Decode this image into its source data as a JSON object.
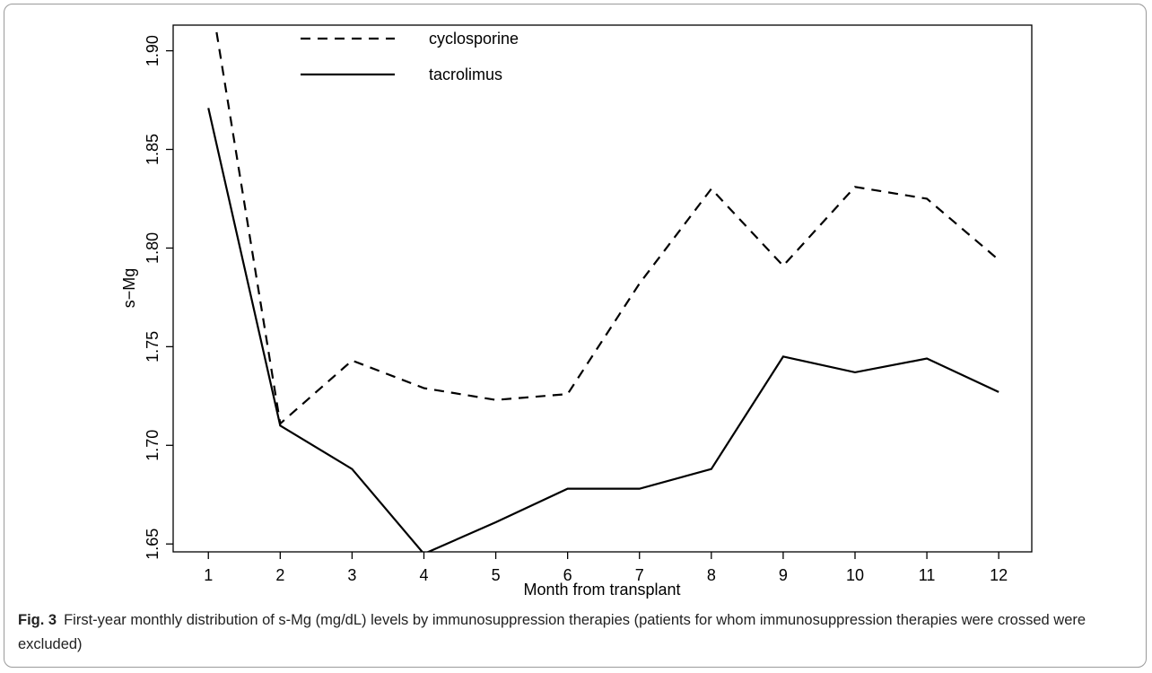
{
  "chart_data": {
    "type": "line",
    "x_label": "Month from transplant",
    "y_label": "s−Mg",
    "x": [
      1,
      2,
      3,
      4,
      5,
      6,
      7,
      8,
      9,
      10,
      11,
      12
    ],
    "series": [
      {
        "name": "cyclosporine",
        "color": "#000000",
        "linestyle": "dashed",
        "values": [
          1.935,
          1.711,
          1.743,
          1.729,
          1.723,
          1.726,
          1.782,
          1.83,
          1.791,
          1.831,
          1.825,
          1.794
        ]
      },
      {
        "name": "tacrolimus",
        "color": "#000000",
        "linestyle": "solid",
        "values": [
          1.871,
          1.71,
          1.688,
          1.645,
          1.661,
          1.678,
          1.678,
          1.688,
          1.745,
          1.737,
          1.744,
          1.727
        ]
      }
    ],
    "xlim": [
      0.51,
      12.46
    ],
    "xticks": [
      1,
      2,
      3,
      4,
      5,
      6,
      7,
      8,
      9,
      10,
      11,
      12
    ],
    "ylim": [
      1.646,
      1.913
    ],
    "yticks": [
      1.65,
      {
        "value": 1.7,
        "label": "1.70"
      },
      1.75,
      {
        "value": 1.8,
        "label": "1.80"
      },
      1.85,
      {
        "value": 1.9,
        "label": "1.90"
      }
    ],
    "legend": "top"
  },
  "caption": {
    "label": "Fig. 3",
    "text": "First-year monthly distribution of s-Mg (mg/dL) levels by immunosuppression therapies (patients for whom immunosuppression therapies were crossed were excluded)"
  }
}
